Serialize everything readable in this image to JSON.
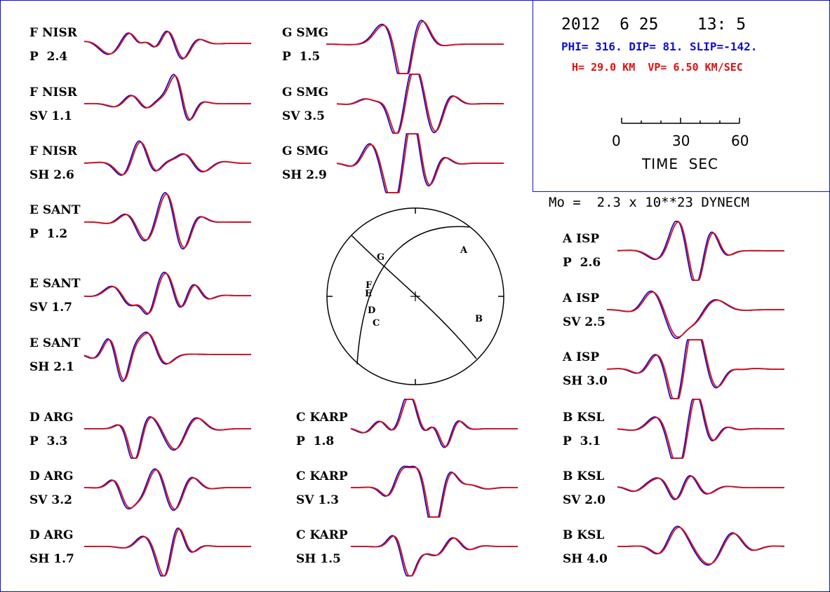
{
  "header": {
    "date": "2012  6 25    13: 5",
    "mechanism": "PHI= 316. DIP= 81. SLIP=-142.",
    "depth": "H= 29.0 KM  VP= 6.50 KM/SEC",
    "scale_ticks": [
      "0",
      "30",
      "60"
    ],
    "time_label": "TIME  SEC"
  },
  "moment": "Mo =  2.3 x 10**23 DYNECM",
  "colors": {
    "observed": "#1010d0",
    "synthetic": "#e01010",
    "frame": "#1010d0"
  },
  "stations": [
    {
      "station": "F NISR",
      "phase": "P  2.4",
      "seed": 1
    },
    {
      "station": "F NISR",
      "phase": "SV 1.1",
      "seed": 2
    },
    {
      "station": "F NISR",
      "phase": "SH 2.6",
      "seed": 3
    },
    {
      "station": "E SANT",
      "phase": "P  1.2",
      "seed": 4
    },
    {
      "station": "E SANT",
      "phase": "SV 1.7",
      "seed": 5
    },
    {
      "station": "E SANT",
      "phase": "SH 2.1",
      "seed": 6
    },
    {
      "station": "D ARG",
      "phase": "P  3.3",
      "seed": 7
    },
    {
      "station": "D ARG",
      "phase": "SV 3.2",
      "seed": 8
    },
    {
      "station": "D ARG",
      "phase": "SH 1.7",
      "seed": 9
    },
    {
      "station": "G SMG",
      "phase": "P  1.5",
      "seed": 10
    },
    {
      "station": "G SMG",
      "phase": "SV 3.5",
      "seed": 11
    },
    {
      "station": "G SMG",
      "phase": "SH 2.9",
      "seed": 12
    },
    {
      "station": "C KARP",
      "phase": "P  1.8",
      "seed": 13
    },
    {
      "station": "C KARP",
      "phase": "SV 1.3",
      "seed": 14
    },
    {
      "station": "C KARP",
      "phase": "SH 1.5",
      "seed": 15
    },
    {
      "station": "A ISP",
      "phase": "P  2.6",
      "seed": 16
    },
    {
      "station": "A ISP",
      "phase": "SV 2.5",
      "seed": 17
    },
    {
      "station": "A ISP",
      "phase": "SH 3.0",
      "seed": 18
    },
    {
      "station": "B KSL",
      "phase": "P  3.1",
      "seed": 19
    },
    {
      "station": "B KSL",
      "phase": "SV 2.0",
      "seed": 20
    },
    {
      "station": "B KSL",
      "phase": "SH 4.0",
      "seed": 21
    }
  ],
  "beachball": {
    "letters": [
      "A",
      "B",
      "C",
      "D",
      "E",
      "F",
      "G"
    ]
  }
}
